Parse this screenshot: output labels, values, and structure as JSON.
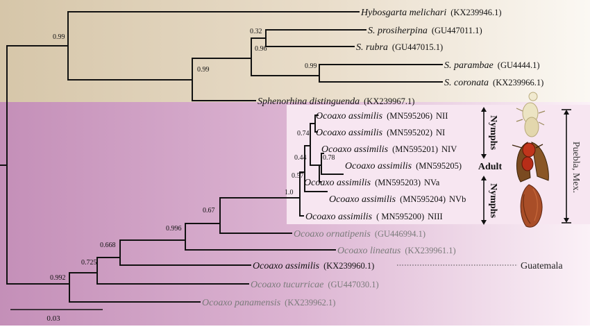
{
  "tree": {
    "tips": [
      {
        "genus": "Hybosgarta",
        "species": "melichari",
        "accession": "(KX239946.1)",
        "stage": "",
        "grey": false
      },
      {
        "genus": "S.",
        "species": "prosiherpina",
        "accession": "(GU447011.1)",
        "stage": "",
        "grey": false
      },
      {
        "genus": "S.",
        "species": "rubra",
        "accession": "(GU447015.1)",
        "stage": "",
        "grey": false
      },
      {
        "genus": "S.",
        "species": "parambae",
        "accession": "(GU4444.1)",
        "stage": "",
        "grey": false
      },
      {
        "genus": "S.",
        "species": "coronata",
        "accession": "(KX239966.1)",
        "stage": "",
        "grey": false
      },
      {
        "genus": "Sphenorhina",
        "species": "distinguenda",
        "accession": "(KX239967.1)",
        "stage": "",
        "grey": false
      },
      {
        "genus": "Ocoaxo",
        "species": "assimilis",
        "accession": "(MN595206)",
        "stage": "NII",
        "grey": false
      },
      {
        "genus": "Ocoaxo",
        "species": "assimilis",
        "accession": "(MN595202)",
        "stage": "NI",
        "grey": false
      },
      {
        "genus": "Ocoaxo",
        "species": "assimilis",
        "accession": "(MN595201)",
        "stage": "NIV",
        "grey": false
      },
      {
        "genus": "Ocoaxo",
        "species": "assimilis",
        "accession": "(MN595205)",
        "stage": "",
        "grey": false
      },
      {
        "genus": "Ocoaxo",
        "species": "assimilis",
        "accession": "(MN595203)",
        "stage": "NVa",
        "grey": false
      },
      {
        "genus": "Ocoaxo",
        "species": "assimilis",
        "accession": "(MN595204)",
        "stage": "NVb",
        "grey": false
      },
      {
        "genus": "Ocoaxo",
        "species": "assimilis",
        "accession": "( MN595200)",
        "stage": "NIII",
        "grey": false
      },
      {
        "genus": "Ocoaxo",
        "species": "ornatipenis",
        "accession": "(GU446994.1)",
        "stage": "",
        "grey": true
      },
      {
        "genus": "Ocoaxo",
        "species": "lineatus",
        "accession": "(KX239961.1)",
        "stage": "",
        "grey": true
      },
      {
        "genus": "Ocoaxo",
        "species": "assimilis",
        "accession": "(KX239960.1)",
        "stage": "",
        "grey": false
      },
      {
        "genus": "Ocoaxo",
        "species": "tucurricae",
        "accession": "(GU447030.1)",
        "stage": "",
        "grey": true
      },
      {
        "genus": "Ocoaxo",
        "species": "panamensis",
        "accession": "(KX239962.1)",
        "stage": "",
        "grey": true
      }
    ],
    "supports": [
      "0.99",
      "0.32",
      "0.96",
      "0.99",
      "0.99",
      "0.74",
      "0.78",
      "0.44",
      "0.57",
      "1.0",
      "0.67",
      "0.996",
      "0.668",
      "0.725",
      "0.992"
    ],
    "scale_bar_label": "0.03"
  },
  "annotations": {
    "nymphs_top": "Nymphs",
    "adult": "Adult",
    "nymphs_bottom": "Nymphs",
    "locality_mexico": "Puebla, Mex.",
    "locality_guatemala": "Guatemala"
  },
  "colors": {
    "outgroup_band": "#dccdb3",
    "ingroup_band": "#c995bd",
    "highlight_box": "#f6e3ef"
  }
}
